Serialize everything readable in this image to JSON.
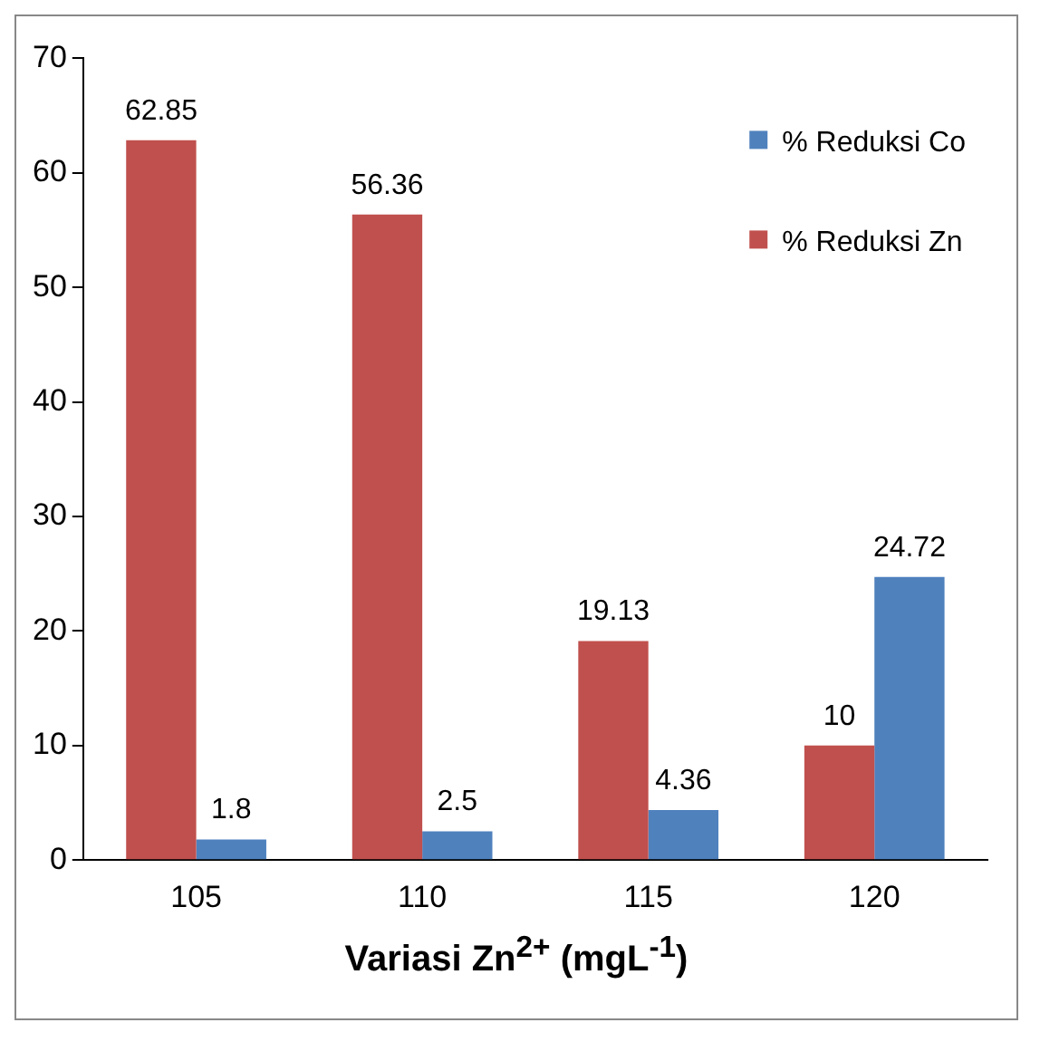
{
  "chart_data": {
    "type": "bar",
    "xlabel": "Variasi Zn$^{2+}$ (mgL$^{-1}$)",
    "categories": [
      "105",
      "110",
      "115",
      "120"
    ],
    "series": [
      {
        "name": "% Reduksi Zn",
        "color": "#c0504d",
        "values": [
          62.85,
          56.36,
          19.13,
          10
        ]
      },
      {
        "name": "% Reduksi Co",
        "color": "#4f81bd",
        "values": [
          1.8,
          2.5,
          4.36,
          24.72
        ]
      }
    ],
    "ylim": [
      0,
      70
    ],
    "yticks": [
      0,
      10,
      20,
      30,
      40,
      50,
      60,
      70
    ],
    "grid": false,
    "legend": "top right",
    "data_labels": true
  }
}
